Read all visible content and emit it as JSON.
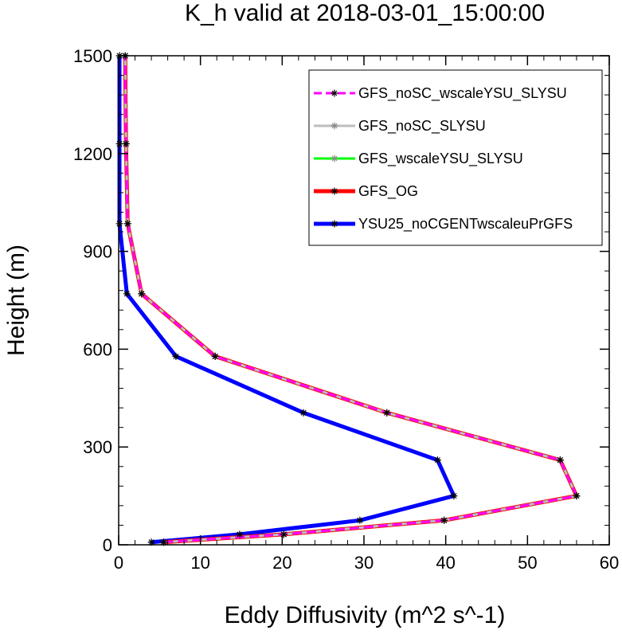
{
  "chart_data": {
    "type": "line",
    "title": "K_h valid at 2018-03-01_15:00:00",
    "xlabel": "Eddy Diffusivity (m^2 s^-1)",
    "ylabel": "Height (m)",
    "xlim": [
      0,
      60
    ],
    "ylim": [
      0,
      1500
    ],
    "xticks": [
      0,
      10,
      20,
      30,
      40,
      50,
      60
    ],
    "yticks": [
      0,
      300,
      600,
      900,
      1200,
      1500
    ],
    "xtick_labels": [
      "0",
      "10",
      "20",
      "30",
      "40",
      "50",
      "60"
    ],
    "ytick_labels": [
      "0",
      "300",
      "600",
      "900",
      "1200",
      "1500"
    ],
    "legend_position": "top-right",
    "grid": false,
    "series": [
      {
        "name": "GFS_noSC_wscaleYSU_SLYSU",
        "color": "#ff00ff",
        "dash": "dashed",
        "x": [
          5.5,
          20.2,
          39.8,
          56.0,
          54.0,
          32.8,
          11.8,
          2.8,
          1.1,
          0.9,
          0.8
        ],
        "y": [
          8,
          32,
          75,
          150,
          260,
          405,
          578,
          770,
          985,
          1230,
          1500
        ]
      },
      {
        "name": "GFS_noSC_SLYSU",
        "color": "#bebebe",
        "dash": "solid",
        "x": [
          5.5,
          20.2,
          39.8,
          56.0,
          54.0,
          32.8,
          11.8,
          2.8,
          1.1,
          0.9,
          0.8
        ],
        "y": [
          8,
          32,
          75,
          150,
          260,
          405,
          578,
          770,
          985,
          1230,
          1500
        ]
      },
      {
        "name": "GFS_wscaleYSU_SLYSU",
        "color": "#00ff00",
        "dash": "solid",
        "x": [
          5.5,
          20.2,
          39.8,
          56.0,
          54.0,
          32.8,
          11.8,
          2.8,
          1.1,
          0.9,
          0.8
        ],
        "y": [
          8,
          32,
          75,
          150,
          260,
          405,
          578,
          770,
          985,
          1230,
          1500
        ]
      },
      {
        "name": "GFS_OG",
        "color": "#ff0000",
        "dash": "solid",
        "x": [
          5.5,
          20.2,
          39.8,
          56.0,
          54.0,
          32.8,
          11.8,
          2.8,
          1.1,
          0.9,
          0.8
        ],
        "y": [
          8,
          32,
          75,
          150,
          260,
          405,
          578,
          770,
          985,
          1230,
          1500
        ]
      },
      {
        "name": "YSU25_noCGENTwscaleuPrGFS",
        "color": "#0000ff",
        "dash": "solid",
        "x": [
          4.0,
          14.8,
          29.5,
          41.0,
          39.0,
          22.6,
          7.0,
          1.0,
          0.1,
          0.1,
          0.1
        ],
        "y": [
          8,
          32,
          75,
          150,
          260,
          405,
          578,
          770,
          985,
          1230,
          1500
        ]
      }
    ]
  }
}
